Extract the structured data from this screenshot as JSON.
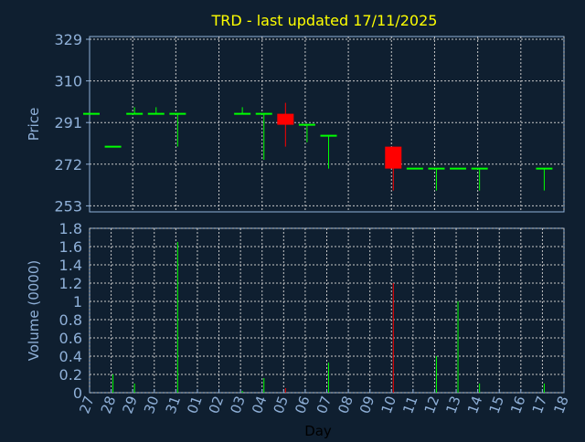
{
  "chart_data": [
    {
      "type": "candlestick",
      "title": "TRD - last updated 17/11/2025",
      "ylabel": "Price",
      "ylim": [
        239,
        329
      ],
      "yticks": [
        253,
        272,
        291,
        310,
        329
      ],
      "grid": true,
      "colors": {
        "up": "#00ff00",
        "down": "#ff0000",
        "title": "#ffff00",
        "axis": "#8fb0d8",
        "background": "#0f1f30"
      },
      "x_labels": [
        "27",
        "28",
        "29",
        "30",
        "31",
        "01",
        "02",
        "03",
        "04",
        "05",
        "06",
        "07",
        "08",
        "09",
        "10",
        "11",
        "12",
        "13",
        "14",
        "15",
        "16",
        "17",
        "18"
      ],
      "candles": [
        {
          "day": "27",
          "open": 295,
          "high": 295,
          "low": 295,
          "close": 295
        },
        {
          "day": "28",
          "open": 280,
          "high": 280,
          "low": 280,
          "close": 280
        },
        {
          "day": "29",
          "open": 295,
          "high": 298,
          "low": 295,
          "close": 295
        },
        {
          "day": "30",
          "open": 295,
          "high": 298,
          "low": 295,
          "close": 295
        },
        {
          "day": "31",
          "open": 295,
          "high": 295,
          "low": 280,
          "close": 295
        },
        {
          "day": "03",
          "open": 295,
          "high": 298,
          "low": 295,
          "close": 295
        },
        {
          "day": "04",
          "open": 295,
          "high": 295,
          "low": 274,
          "close": 295
        },
        {
          "day": "05",
          "open": 295,
          "high": 300,
          "low": 280,
          "close": 290
        },
        {
          "day": "06",
          "open": 290,
          "high": 290,
          "low": 282,
          "close": 290
        },
        {
          "day": "07",
          "open": 285,
          "high": 285,
          "low": 270,
          "close": 285
        },
        {
          "day": "10",
          "open": 280,
          "high": 280,
          "low": 260,
          "close": 270
        },
        {
          "day": "11",
          "open": 270,
          "high": 270,
          "low": 270,
          "close": 270
        },
        {
          "day": "12",
          "open": 270,
          "high": 270,
          "low": 260,
          "close": 270
        },
        {
          "day": "13",
          "open": 270,
          "high": 270,
          "low": 270,
          "close": 270
        },
        {
          "day": "14",
          "open": 270,
          "high": 270,
          "low": 260,
          "close": 270
        },
        {
          "day": "17",
          "open": 270,
          "high": 270,
          "low": 260,
          "close": 270
        }
      ]
    },
    {
      "type": "bar",
      "ylabel": "Volume (0000)",
      "xlabel": "Day",
      "ylim": [
        0,
        1.8
      ],
      "yticks": [
        "0",
        "0.2",
        "0.4",
        "0.6",
        "0.8",
        "1",
        "1.2",
        "1.4",
        "1.6",
        "1.8"
      ],
      "grid": true,
      "bars": [
        {
          "day": "27",
          "value": 0,
          "dir": "up"
        },
        {
          "day": "28",
          "value": 0.2,
          "dir": "up"
        },
        {
          "day": "29",
          "value": 0.1,
          "dir": "up"
        },
        {
          "day": "30",
          "value": 0,
          "dir": "up"
        },
        {
          "day": "31",
          "value": 1.65,
          "dir": "up"
        },
        {
          "day": "03",
          "value": 0.02,
          "dir": "up"
        },
        {
          "day": "04",
          "value": 0.16,
          "dir": "up"
        },
        {
          "day": "05",
          "value": 0.05,
          "dir": "down"
        },
        {
          "day": "06",
          "value": 0,
          "dir": "up"
        },
        {
          "day": "07",
          "value": 0.33,
          "dir": "up"
        },
        {
          "day": "10",
          "value": 1.2,
          "dir": "down"
        },
        {
          "day": "11",
          "value": 0,
          "dir": "up"
        },
        {
          "day": "12",
          "value": 0.4,
          "dir": "up"
        },
        {
          "day": "13",
          "value": 1.0,
          "dir": "up"
        },
        {
          "day": "14",
          "value": 0.1,
          "dir": "up"
        },
        {
          "day": "17",
          "value": 0.1,
          "dir": "up"
        }
      ]
    }
  ]
}
